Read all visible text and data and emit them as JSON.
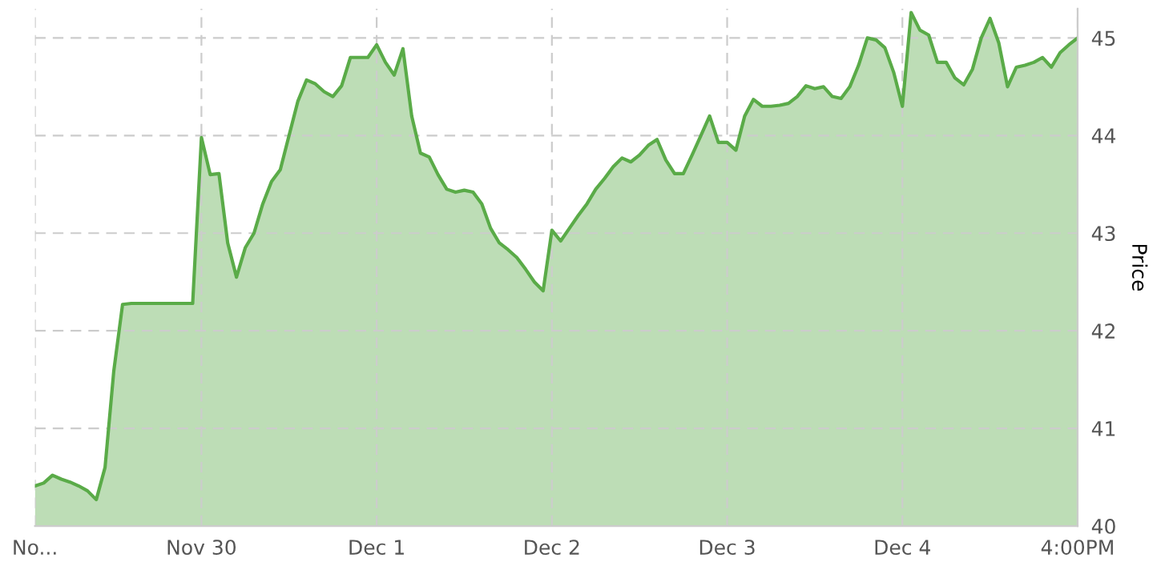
{
  "chart_data": {
    "type": "area",
    "ylabel": "Price",
    "categories": [
      "No...",
      null,
      null,
      null,
      null,
      null,
      null,
      null,
      null,
      null,
      null,
      null,
      null,
      null,
      null,
      null,
      null,
      null,
      null,
      "Nov 30",
      null,
      null,
      null,
      null,
      null,
      null,
      null,
      null,
      null,
      null,
      null,
      null,
      null,
      null,
      null,
      null,
      null,
      null,
      null,
      "Dec 1",
      null,
      null,
      null,
      null,
      null,
      null,
      null,
      null,
      null,
      null,
      null,
      null,
      null,
      null,
      null,
      null,
      null,
      null,
      null,
      "Dec 2",
      null,
      null,
      null,
      null,
      null,
      null,
      null,
      null,
      null,
      null,
      null,
      null,
      null,
      null,
      null,
      null,
      null,
      null,
      null,
      "Dec 3",
      null,
      null,
      null,
      null,
      null,
      null,
      null,
      null,
      null,
      null,
      null,
      null,
      null,
      null,
      null,
      null,
      null,
      null,
      null,
      "Dec 4",
      null,
      null,
      null,
      null,
      null,
      null,
      null,
      null,
      null,
      null,
      null,
      null,
      null,
      null,
      null,
      null,
      null,
      null,
      null,
      "4:00PM"
    ],
    "series": [
      {
        "color": "#5aab48",
        "values": [
          40.41,
          40.44,
          40.52,
          40.48,
          40.45,
          40.41,
          40.36,
          40.27,
          40.6,
          41.59,
          42.27,
          42.28,
          42.28,
          42.28,
          42.28,
          42.28,
          42.28,
          42.28,
          42.28,
          43.98,
          43.6,
          43.61,
          42.9,
          42.55,
          42.85,
          43.0,
          43.3,
          43.53,
          43.65,
          44.0,
          44.35,
          44.57,
          44.53,
          44.45,
          44.4,
          44.51,
          44.8,
          44.8,
          44.8,
          44.93,
          44.75,
          44.62,
          44.89,
          44.2,
          43.82,
          43.78,
          43.6,
          43.45,
          43.42,
          43.44,
          43.42,
          43.3,
          43.05,
          42.9,
          42.83,
          42.75,
          42.63,
          42.5,
          42.41,
          43.03,
          42.92,
          43.05,
          43.18,
          43.3,
          43.45,
          43.56,
          43.68,
          43.77,
          43.73,
          43.8,
          43.9,
          43.96,
          43.75,
          43.61,
          43.61,
          43.8,
          44.0,
          44.2,
          43.93,
          43.93,
          43.85,
          44.2,
          44.37,
          44.3,
          44.3,
          44.31,
          44.33,
          44.4,
          44.51,
          44.48,
          44.5,
          44.4,
          44.38,
          44.5,
          44.72,
          45.0,
          44.98,
          44.9,
          44.65,
          44.3,
          45.26,
          45.08,
          45.03,
          44.75,
          44.75,
          44.59,
          44.52,
          44.68,
          45.0,
          45.2,
          44.95,
          44.5,
          44.7,
          44.72,
          44.75,
          44.8,
          44.7,
          44.85,
          44.93,
          45.0
        ]
      }
    ],
    "ylim": [
      40,
      45.3
    ],
    "yticks": [
      40,
      41,
      42,
      43,
      44,
      45
    ],
    "grid": true,
    "line_style": "solid",
    "marker": "none"
  }
}
